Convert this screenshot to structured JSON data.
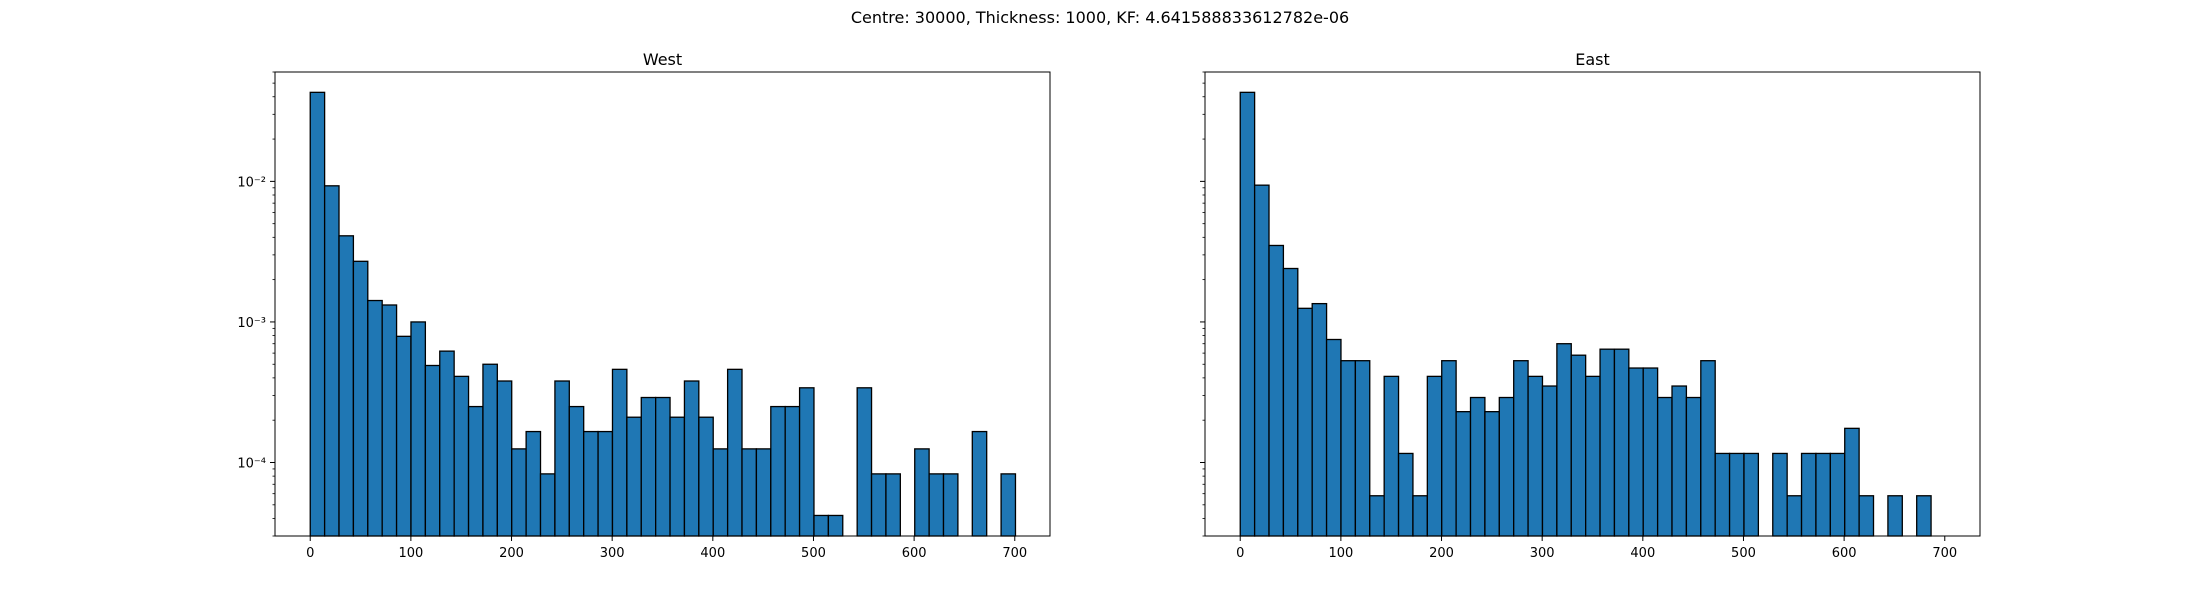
{
  "figure": {
    "suptitle": "Centre: 30000, Thickness: 1000, KF: 4.641588833612782e-06"
  },
  "chart_data": [
    {
      "type": "bar",
      "title": "West",
      "xlabel": "",
      "ylabel": "",
      "y_scale": "log",
      "grid": false,
      "xlim": [
        -35,
        735
      ],
      "ylim": [
        3e-05,
        0.06
      ],
      "xticks": [
        0,
        100,
        200,
        300,
        400,
        500,
        600,
        700
      ],
      "xtick_labels": [
        "0",
        "100",
        "200",
        "300",
        "400",
        "500",
        "600",
        "700"
      ],
      "yticks": [
        0.0001,
        0.001,
        0.01
      ],
      "ytick_labels": [
        "10⁻⁴",
        "10⁻³",
        "10⁻²"
      ],
      "bar_color": "#1f77b4",
      "edge_color": "#000000",
      "bin_start": 0,
      "bin_width": 14.3,
      "values": [
        0.043,
        0.0093,
        0.0041,
        0.0027,
        0.00142,
        0.00132,
        0.00079,
        0.001,
        0.00049,
        0.00062,
        0.00041,
        0.00025,
        0.0005,
        0.00038,
        0.000125,
        0.000166,
        8.3e-05,
        0.00038,
        0.00025,
        0.000166,
        0.000166,
        0.00046,
        0.00021,
        0.00029,
        0.00029,
        0.00021,
        0.00038,
        0.00021,
        0.000125,
        0.00046,
        0.000125,
        0.000125,
        0.00025,
        0.00025,
        0.00034,
        4.2e-05,
        4.2e-05,
        0,
        0.00034,
        8.3e-05,
        8.3e-05,
        0,
        0.000125,
        8.3e-05,
        8.3e-05,
        0,
        0.000166,
        0,
        8.3e-05
      ]
    },
    {
      "type": "bar",
      "title": "East",
      "xlabel": "",
      "ylabel": "",
      "y_scale": "log",
      "grid": false,
      "xlim": [
        -35,
        735
      ],
      "ylim": [
        3e-05,
        0.06
      ],
      "xticks": [
        0,
        100,
        200,
        300,
        400,
        500,
        600,
        700
      ],
      "xtick_labels": [
        "0",
        "100",
        "200",
        "300",
        "400",
        "500",
        "600",
        "700"
      ],
      "yticks": [
        0.0001,
        0.001,
        0.01
      ],
      "ytick_labels": [],
      "bar_color": "#1f77b4",
      "edge_color": "#000000",
      "bin_start": 0,
      "bin_width": 14.3,
      "values": [
        0.043,
        0.0094,
        0.0035,
        0.0024,
        0.00125,
        0.00135,
        0.00075,
        0.00053,
        0.00053,
        5.8e-05,
        0.00041,
        0.000116,
        5.8e-05,
        0.00041,
        0.00053,
        0.00023,
        0.00029,
        0.00023,
        0.00029,
        0.00053,
        0.00041,
        0.00035,
        0.0007,
        0.00058,
        0.00041,
        0.00064,
        0.00064,
        0.00047,
        0.00047,
        0.00029,
        0.00035,
        0.00029,
        0.00053,
        0.000116,
        0.000116,
        0.000116,
        0,
        0.000116,
        5.8e-05,
        0.000116,
        0.000116,
        0.000116,
        0.000175,
        5.8e-05,
        0,
        5.8e-05,
        0,
        5.8e-05
      ]
    }
  ]
}
